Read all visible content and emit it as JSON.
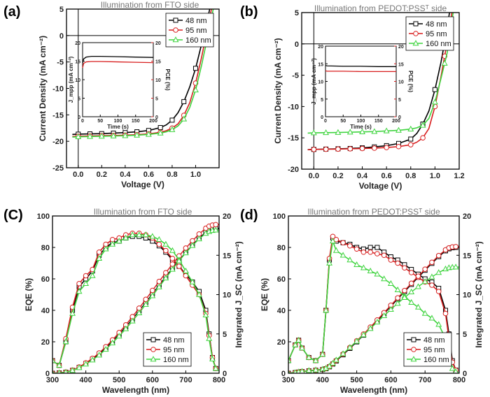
{
  "figure": {
    "width": 700,
    "height": 568
  },
  "colors": {
    "48 nm": "#000000",
    "95 nm": "#d81e1e",
    "160 nm": "#3fd43f",
    "frame": "#000000"
  },
  "chart_data": [
    {
      "id": "a",
      "panel_label": "(a)",
      "type": "line",
      "title": "Illumination from FTO side",
      "xlabel": "Voltage (V)",
      "ylabel": "Current Density (mA cm⁻²)",
      "xlim": [
        -0.1,
        1.2
      ],
      "ylim": [
        -25,
        5
      ],
      "xticks": [
        0.0,
        0.2,
        0.4,
        0.6,
        0.8,
        1.0
      ],
      "yticks": [
        -25,
        -20,
        -15,
        -10,
        -5,
        0,
        5
      ],
      "xtick_labels": [
        "0.0",
        "0.2",
        "0.4",
        "0.6",
        "0.8",
        "1.0"
      ],
      "ytick_labels": [
        "-25",
        "-20",
        "-15",
        "-10",
        "-5",
        "0",
        "5"
      ],
      "marker_x": [
        0.0,
        0.1,
        0.2,
        0.3,
        0.4,
        0.5,
        0.6,
        0.7,
        0.8,
        0.9,
        1.0
      ],
      "series": [
        {
          "name": "48 nm",
          "marker": "square",
          "x": [
            -0.05,
            0.0,
            0.1,
            0.2,
            0.3,
            0.4,
            0.5,
            0.6,
            0.7,
            0.75,
            0.8,
            0.85,
            0.9,
            0.95,
            1.0,
            1.05,
            1.08,
            1.12
          ],
          "y": [
            -18.7,
            -18.65,
            -18.6,
            -18.55,
            -18.45,
            -18.35,
            -18.2,
            -17.95,
            -17.4,
            -16.9,
            -16.0,
            -14.6,
            -12.5,
            -9.7,
            -6.2,
            -1.7,
            1.0,
            5.0
          ]
        },
        {
          "name": "95 nm",
          "marker": "circle",
          "x": [
            -0.05,
            0.0,
            0.1,
            0.2,
            0.3,
            0.4,
            0.5,
            0.6,
            0.7,
            0.75,
            0.8,
            0.85,
            0.9,
            0.95,
            1.0,
            1.05,
            1.1,
            1.135
          ],
          "y": [
            -19.1,
            -19.05,
            -19.0,
            -18.95,
            -18.9,
            -18.85,
            -18.75,
            -18.6,
            -18.3,
            -18.0,
            -17.5,
            -16.7,
            -15.1,
            -12.7,
            -9.0,
            -4.2,
            1.2,
            5.0
          ]
        },
        {
          "name": "160 nm",
          "marker": "triangle",
          "x": [
            -0.05,
            0.0,
            0.1,
            0.2,
            0.3,
            0.4,
            0.5,
            0.6,
            0.7,
            0.75,
            0.8,
            0.85,
            0.9,
            0.95,
            1.0,
            1.05,
            1.1,
            1.15
          ],
          "y": [
            -19.2,
            -19.15,
            -19.1,
            -19.05,
            -19.0,
            -18.95,
            -18.85,
            -18.7,
            -18.45,
            -18.2,
            -17.8,
            -17.1,
            -15.8,
            -13.6,
            -10.3,
            -5.7,
            -0.5,
            5.0
          ]
        }
      ],
      "legend": [
        "48 nm",
        "95 nm",
        "160 nm"
      ],
      "inset": {
        "xlabel": "Time (s)",
        "ylabel_left": "J_mpp (mA cm⁻²)",
        "ylabel_right": "PCE (%)",
        "xlim": [
          0,
          200
        ],
        "ylim": [
          0,
          20
        ],
        "xticks": [
          0,
          50,
          100,
          150,
          200
        ],
        "yticks": [
          0,
          5,
          10,
          15,
          20
        ],
        "xtick_labels": [
          "0",
          "50",
          "100",
          "150",
          "200"
        ],
        "ytick_labels": [
          "0",
          "5",
          "10",
          "15",
          "20"
        ],
        "series": [
          {
            "name": "J_mpp",
            "color": "black",
            "x": [
              0,
              3,
              10,
              25,
              50,
              100,
              150,
              200
            ],
            "y": [
              14.5,
              15.6,
              16.1,
              16.3,
              16.3,
              16.2,
              16.1,
              16.0
            ]
          },
          {
            "name": "PCE",
            "color": "red",
            "x": [
              0,
              3,
              10,
              25,
              50,
              100,
              150,
              200
            ],
            "y": [
              13.2,
              14.4,
              14.8,
              14.9,
              14.9,
              14.8,
              14.7,
              14.6
            ]
          }
        ]
      }
    },
    {
      "id": "b",
      "panel_label": "(b)",
      "type": "line",
      "title": "Illumination from PEDOT:PSSᵀ side",
      "xlabel": "Voltage (V)",
      "ylabel": "Current Density (mA cm⁻²)",
      "xlim": [
        -0.1,
        1.2
      ],
      "ylim": [
        -20,
        5
      ],
      "xticks": [
        0.0,
        0.2,
        0.4,
        0.6,
        0.8,
        1.0,
        1.2
      ],
      "yticks": [
        -20,
        -15,
        -10,
        -5,
        0,
        5
      ],
      "xtick_labels": [
        "0.0",
        "0.2",
        "0.4",
        "0.6",
        "0.8",
        "1.0",
        "1.2"
      ],
      "ytick_labels": [
        "-20",
        "-15",
        "-10",
        "-5",
        "0",
        "5"
      ],
      "marker_x": [
        0.0,
        0.1,
        0.2,
        0.3,
        0.4,
        0.5,
        0.6,
        0.7,
        0.8,
        0.9,
        1.0,
        1.08
      ],
      "series": [
        {
          "name": "48 nm",
          "marker": "square",
          "x": [
            -0.05,
            0.0,
            0.1,
            0.2,
            0.3,
            0.4,
            0.5,
            0.6,
            0.7,
            0.8,
            0.85,
            0.9,
            0.95,
            1.0,
            1.05,
            1.08,
            1.12
          ],
          "y": [
            -16.9,
            -16.85,
            -16.8,
            -16.75,
            -16.7,
            -16.6,
            -16.45,
            -16.25,
            -15.9,
            -15.2,
            -14.3,
            -12.8,
            -10.7,
            -7.3,
            -2.9,
            0.3,
            5.0
          ]
        },
        {
          "name": "95 nm",
          "marker": "circle",
          "x": [
            -0.05,
            0.0,
            0.1,
            0.2,
            0.3,
            0.4,
            0.5,
            0.6,
            0.7,
            0.8,
            0.85,
            0.9,
            0.95,
            1.0,
            1.05,
            1.1,
            1.14
          ],
          "y": [
            -16.9,
            -16.85,
            -16.82,
            -16.8,
            -16.75,
            -16.7,
            -16.65,
            -16.55,
            -16.4,
            -16.1,
            -15.7,
            -15.0,
            -13.5,
            -10.0,
            -5.2,
            0.2,
            5.0
          ]
        },
        {
          "name": "160 nm",
          "marker": "triangle",
          "x": [
            -0.05,
            0.0,
            0.1,
            0.2,
            0.3,
            0.4,
            0.5,
            0.6,
            0.7,
            0.8,
            0.85,
            0.9,
            0.95,
            1.0,
            1.05,
            1.1,
            1.15
          ],
          "y": [
            -14.25,
            -14.2,
            -14.18,
            -14.15,
            -14.1,
            -14.05,
            -14.0,
            -13.9,
            -13.8,
            -13.6,
            -13.4,
            -13.0,
            -11.9,
            -9.3,
            -5.5,
            -1.5,
            5.0
          ]
        }
      ],
      "legend": [
        "48 nm",
        "95 nm",
        "160 nm"
      ],
      "inset": {
        "xlabel": "Time (s)",
        "ylabel_left": "J_mpp (mA cm⁻²)",
        "ylabel_right": "PCE (%)",
        "xlim": [
          0,
          200
        ],
        "ylim": [
          0,
          20
        ],
        "xticks": [
          0,
          50,
          100,
          150,
          200
        ],
        "yticks": [
          0,
          5,
          10,
          15,
          20
        ],
        "xtick_labels": [
          "0",
          "50",
          "100",
          "150",
          "200"
        ],
        "ytick_labels": [
          "0",
          "5",
          "10",
          "15",
          "20"
        ],
        "series": [
          {
            "name": "J_mpp",
            "color": "black",
            "x": [
              0,
              5,
              50,
              100,
              150,
              200
            ],
            "y": [
              14.5,
              14.4,
              14.3,
              14.3,
              14.2,
              14.2
            ]
          },
          {
            "name": "PCE",
            "color": "red",
            "x": [
              0,
              5,
              50,
              100,
              150,
              200
            ],
            "y": [
              13.0,
              12.9,
              12.9,
              12.8,
              12.8,
              12.8
            ]
          }
        ]
      }
    },
    {
      "id": "c",
      "panel_label": "(C)",
      "type": "line",
      "title": "Illumination from FTO side",
      "xlabel": "Wavelength (nm)",
      "ylabel": "EQE (%)",
      "ylabel_right": "Integrated J_SC (mA cm⁻²)",
      "xlim": [
        300,
        800
      ],
      "ylim": [
        0,
        100
      ],
      "ylim_right": [
        0,
        20
      ],
      "xticks": [
        300,
        400,
        500,
        600,
        700,
        800
      ],
      "yticks": [
        0,
        20,
        40,
        60,
        80,
        100
      ],
      "yticks_right": [
        0,
        5,
        10,
        15,
        20
      ],
      "xtick_labels": [
        "300",
        "400",
        "500",
        "600",
        "700",
        "800"
      ],
      "ytick_labels": [
        "0",
        "20",
        "40",
        "60",
        "80",
        "100"
      ],
      "ytick_labels_right": [
        "0",
        "5",
        "10",
        "15",
        "20"
      ],
      "marker_step": 20,
      "eqe_x": [
        300,
        320,
        340,
        360,
        380,
        400,
        420,
        440,
        460,
        480,
        500,
        520,
        540,
        560,
        580,
        600,
        620,
        640,
        660,
        680,
        700,
        720,
        740,
        760,
        770,
        780,
        790
      ],
      "series": [
        {
          "name": "48 nm",
          "marker": "square",
          "eqe": [
            8,
            5,
            20,
            40,
            55,
            60,
            65,
            75,
            80,
            83,
            84,
            86,
            87,
            87,
            86,
            84,
            81,
            77,
            72,
            68,
            63,
            58,
            52,
            40,
            25,
            10,
            3
          ],
          "jsc_x": [
            300,
            800
          ],
          "jsc_end": 18.4
        },
        {
          "name": "95 nm",
          "marker": "circle",
          "eqe": [
            8,
            5,
            22,
            42,
            57,
            62,
            66,
            77,
            82,
            85,
            86,
            88,
            89,
            89,
            88,
            86,
            82,
            78,
            73,
            68,
            62,
            56,
            50,
            38,
            24,
            10,
            3
          ],
          "jsc_x": [
            300,
            800
          ],
          "jsc_end": 18.9
        },
        {
          "name": "160 nm",
          "marker": "triangle",
          "eqe": [
            8,
            5,
            20,
            38,
            52,
            57,
            62,
            73,
            79,
            82,
            84,
            86,
            88,
            88,
            88,
            87,
            85,
            82,
            78,
            72,
            65,
            58,
            50,
            37,
            22,
            9,
            3
          ],
          "jsc_x": [
            300,
            800
          ],
          "jsc_end": 18.2
        }
      ],
      "legend": [
        "48 nm",
        "95 nm",
        "160 nm"
      ]
    },
    {
      "id": "d",
      "panel_label": "(d)",
      "type": "line",
      "title": "Illumination from PEDOT:PSSᵀ side",
      "xlabel": "Wavelength (nm)",
      "ylabel": "EQE (%)",
      "ylabel_right": "Integrated J_SC (mA cm⁻²)",
      "xlim": [
        300,
        800
      ],
      "ylim": [
        0,
        100
      ],
      "ylim_right": [
        0,
        20
      ],
      "xticks": [
        300,
        400,
        500,
        600,
        700,
        800
      ],
      "yticks": [
        0,
        20,
        40,
        60,
        80,
        100
      ],
      "yticks_right": [
        0,
        5,
        10,
        15,
        20
      ],
      "xtick_labels": [
        "300",
        "400",
        "500",
        "600",
        "700",
        "800"
      ],
      "ytick_labels": [
        "0",
        "20",
        "40",
        "60",
        "80",
        "100"
      ],
      "ytick_labels_right": [
        "0",
        "5",
        "10",
        "15",
        "20"
      ],
      "eqe_x": [
        300,
        320,
        330,
        340,
        360,
        380,
        400,
        410,
        420,
        430,
        440,
        460,
        480,
        500,
        520,
        540,
        560,
        580,
        600,
        620,
        640,
        660,
        680,
        700,
        720,
        740,
        760,
        770,
        780,
        790
      ],
      "series": [
        {
          "name": "48 nm",
          "marker": "square",
          "eqe": [
            8,
            18,
            21,
            16,
            10,
            8,
            12,
            40,
            72,
            86,
            84,
            83,
            82,
            80,
            79,
            80,
            80,
            77,
            74,
            72,
            69,
            66,
            63,
            60,
            58,
            54,
            40,
            25,
            8,
            2
          ],
          "jsc_end": 16.0
        },
        {
          "name": "95 nm",
          "marker": "circle",
          "eqe": [
            8,
            18,
            21,
            16,
            10,
            8,
            12,
            40,
            73,
            87,
            85,
            83,
            81,
            79,
            77,
            77,
            76,
            75,
            72,
            70,
            67,
            64,
            61,
            58,
            56,
            52,
            38,
            22,
            7,
            2
          ],
          "jsc_end": 16.1
        },
        {
          "name": "160 nm",
          "marker": "triangle",
          "eqe": [
            8,
            18,
            21,
            16,
            10,
            8,
            12,
            40,
            70,
            84,
            78,
            75,
            72,
            69,
            67,
            65,
            63,
            60,
            57,
            53,
            49,
            45,
            42,
            38,
            35,
            31,
            22,
            12,
            3,
            1
          ],
          "jsc_end": 13.5
        }
      ],
      "legend": [
        "48 nm",
        "95 nm",
        "160 nm"
      ]
    }
  ]
}
